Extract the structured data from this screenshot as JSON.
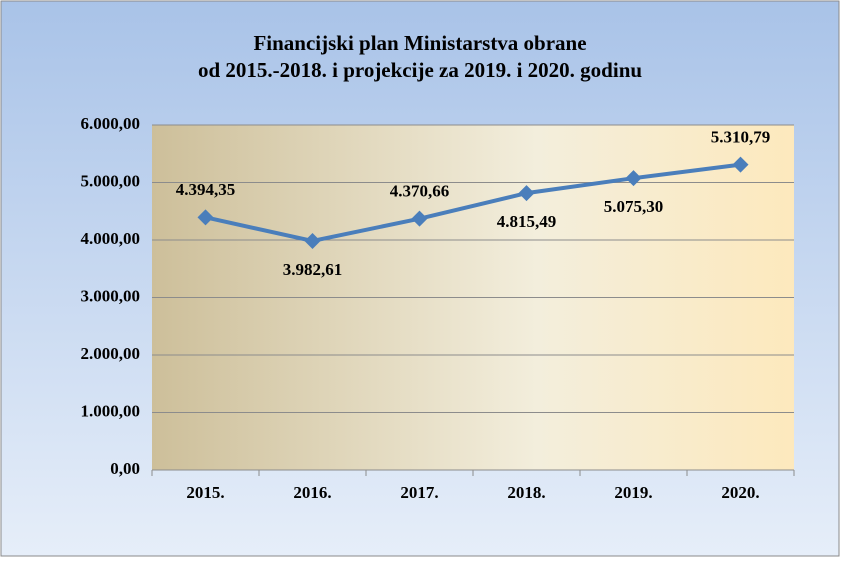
{
  "chart_data": {
    "type": "line",
    "title": [
      "Financijski plan Ministarstva obrane",
      "od 2015.-2018. i projekcije  za 2019. i 2020. godinu"
    ],
    "categories": [
      "2015.",
      "2016.",
      "2017.",
      "2018.",
      "2019.",
      "2020."
    ],
    "series": [
      {
        "color": "#4a7ebb",
        "values": [
          4394.35,
          3982.61,
          4370.66,
          4815.49,
          5075.3,
          5310.79
        ],
        "value_labels": [
          "4.394,35",
          "3.982,61",
          "4.370,66",
          "4.815,49",
          "5.075,30",
          "5.310,79"
        ]
      }
    ],
    "ylim": [
      0,
      6000
    ],
    "yticks": [
      {
        "value": 0,
        "label": "0,00"
      },
      {
        "value": 1000,
        "label": "1.000,00"
      },
      {
        "value": 2000,
        "label": "2.000,00"
      },
      {
        "value": 3000,
        "label": "3.000,00"
      },
      {
        "value": 4000,
        "label": "4.000,00"
      },
      {
        "value": 5000,
        "label": "5.000,00"
      },
      {
        "value": 6000,
        "label": "6.000,00"
      }
    ],
    "grid": true
  }
}
